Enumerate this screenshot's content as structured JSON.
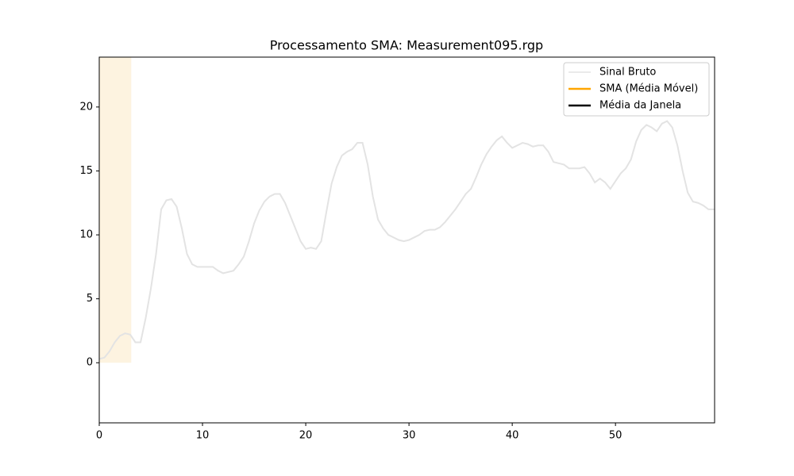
{
  "chart_data": {
    "type": "line",
    "title": "Processamento SMA: Measurement095.rgp",
    "x": [
      0,
      0.5,
      1,
      1.5,
      2,
      2.5,
      3,
      3.5,
      4,
      4.5,
      5,
      5.5,
      6,
      6.5,
      7,
      7.5,
      8,
      8.5,
      9,
      9.5,
      10,
      11,
      11.5,
      12,
      13,
      13.5,
      14,
      14.5,
      15,
      15.5,
      16,
      16.5,
      17,
      17.5,
      18,
      18.5,
      19,
      19.5,
      20,
      20.5,
      21,
      21.5,
      22,
      22.5,
      23,
      23.5,
      24,
      24.5,
      25,
      25.5,
      26,
      26.5,
      27,
      27.5,
      28,
      28.5,
      29,
      29.5,
      30,
      31,
      31.5,
      32,
      32.5,
      33,
      33.5,
      34,
      34.5,
      35,
      35.5,
      36,
      36.5,
      37,
      37.5,
      38,
      38.5,
      39,
      39.5,
      40,
      40.5,
      41,
      41.5,
      42,
      42.5,
      43,
      43.5,
      44,
      44.5,
      45,
      45.5,
      46,
      46.5,
      47,
      47.5,
      48,
      48.5,
      49,
      49.5,
      50,
      50.5,
      51,
      51.5,
      52,
      52.5,
      53,
      53.5,
      54,
      54.5,
      55,
      55.5,
      56,
      56.5,
      57,
      57.5,
      58,
      58.5,
      59,
      59.6
    ],
    "series": [
      {
        "color": "#e3e3e3",
        "values": [
          0.3,
          0.4,
          0.9,
          1.6,
          2.1,
          2.3,
          2.2,
          1.6,
          1.6,
          3.5,
          5.8,
          8.5,
          12.0,
          12.7,
          12.8,
          12.2,
          10.5,
          8.5,
          7.7,
          7.5,
          7.5,
          7.5,
          7.2,
          7.0,
          7.2,
          7.7,
          8.3,
          9.5,
          10.9,
          11.9,
          12.6,
          13.0,
          13.2,
          13.2,
          12.5,
          11.5,
          10.5,
          9.5,
          8.9,
          9.0,
          8.9,
          9.5,
          11.8,
          14.0,
          15.3,
          16.2,
          16.5,
          16.7,
          17.2,
          17.2,
          15.5,
          13.0,
          11.2,
          10.5,
          10.0,
          9.8,
          9.6,
          9.5,
          9.6,
          10.0,
          10.3,
          10.4,
          10.4,
          10.6,
          11.0,
          11.5,
          12.0,
          12.6,
          13.2,
          13.6,
          14.5,
          15.5,
          16.3,
          16.9,
          17.4,
          17.7,
          17.2,
          16.8,
          17.0,
          17.2,
          17.1,
          16.9,
          17.0,
          17.0,
          16.5,
          15.7,
          15.6,
          15.5,
          15.2,
          15.2,
          15.2,
          15.3,
          14.8,
          14.1,
          14.4,
          14.1,
          13.6,
          14.2,
          14.8,
          15.2,
          15.9,
          17.3,
          18.2,
          18.6,
          18.4,
          18.1,
          18.7,
          18.9,
          18.4,
          17.0,
          15.0,
          13.3,
          12.6,
          12.5,
          12.3,
          12.0,
          12.0
        ]
      }
    ],
    "legend": [
      {
        "name": "Sinal Bruto",
        "color": "#e3e3e3"
      },
      {
        "name": "SMA (Média Móvel)",
        "color": "orange"
      },
      {
        "name": "Média da Janela",
        "color": "black"
      }
    ],
    "legend_position": "upper right",
    "highlight": {
      "xlim": [
        0,
        3.1
      ],
      "ylim": [
        0,
        23.9
      ],
      "color": "#fdf3e0"
    },
    "xlim": [
      0,
      59.6
    ],
    "xticks": [
      0,
      10,
      20,
      30,
      40,
      50
    ],
    "ylim": [
      -4.7,
      23.9
    ],
    "yticks": [
      0,
      5,
      10,
      15,
      20
    ]
  }
}
